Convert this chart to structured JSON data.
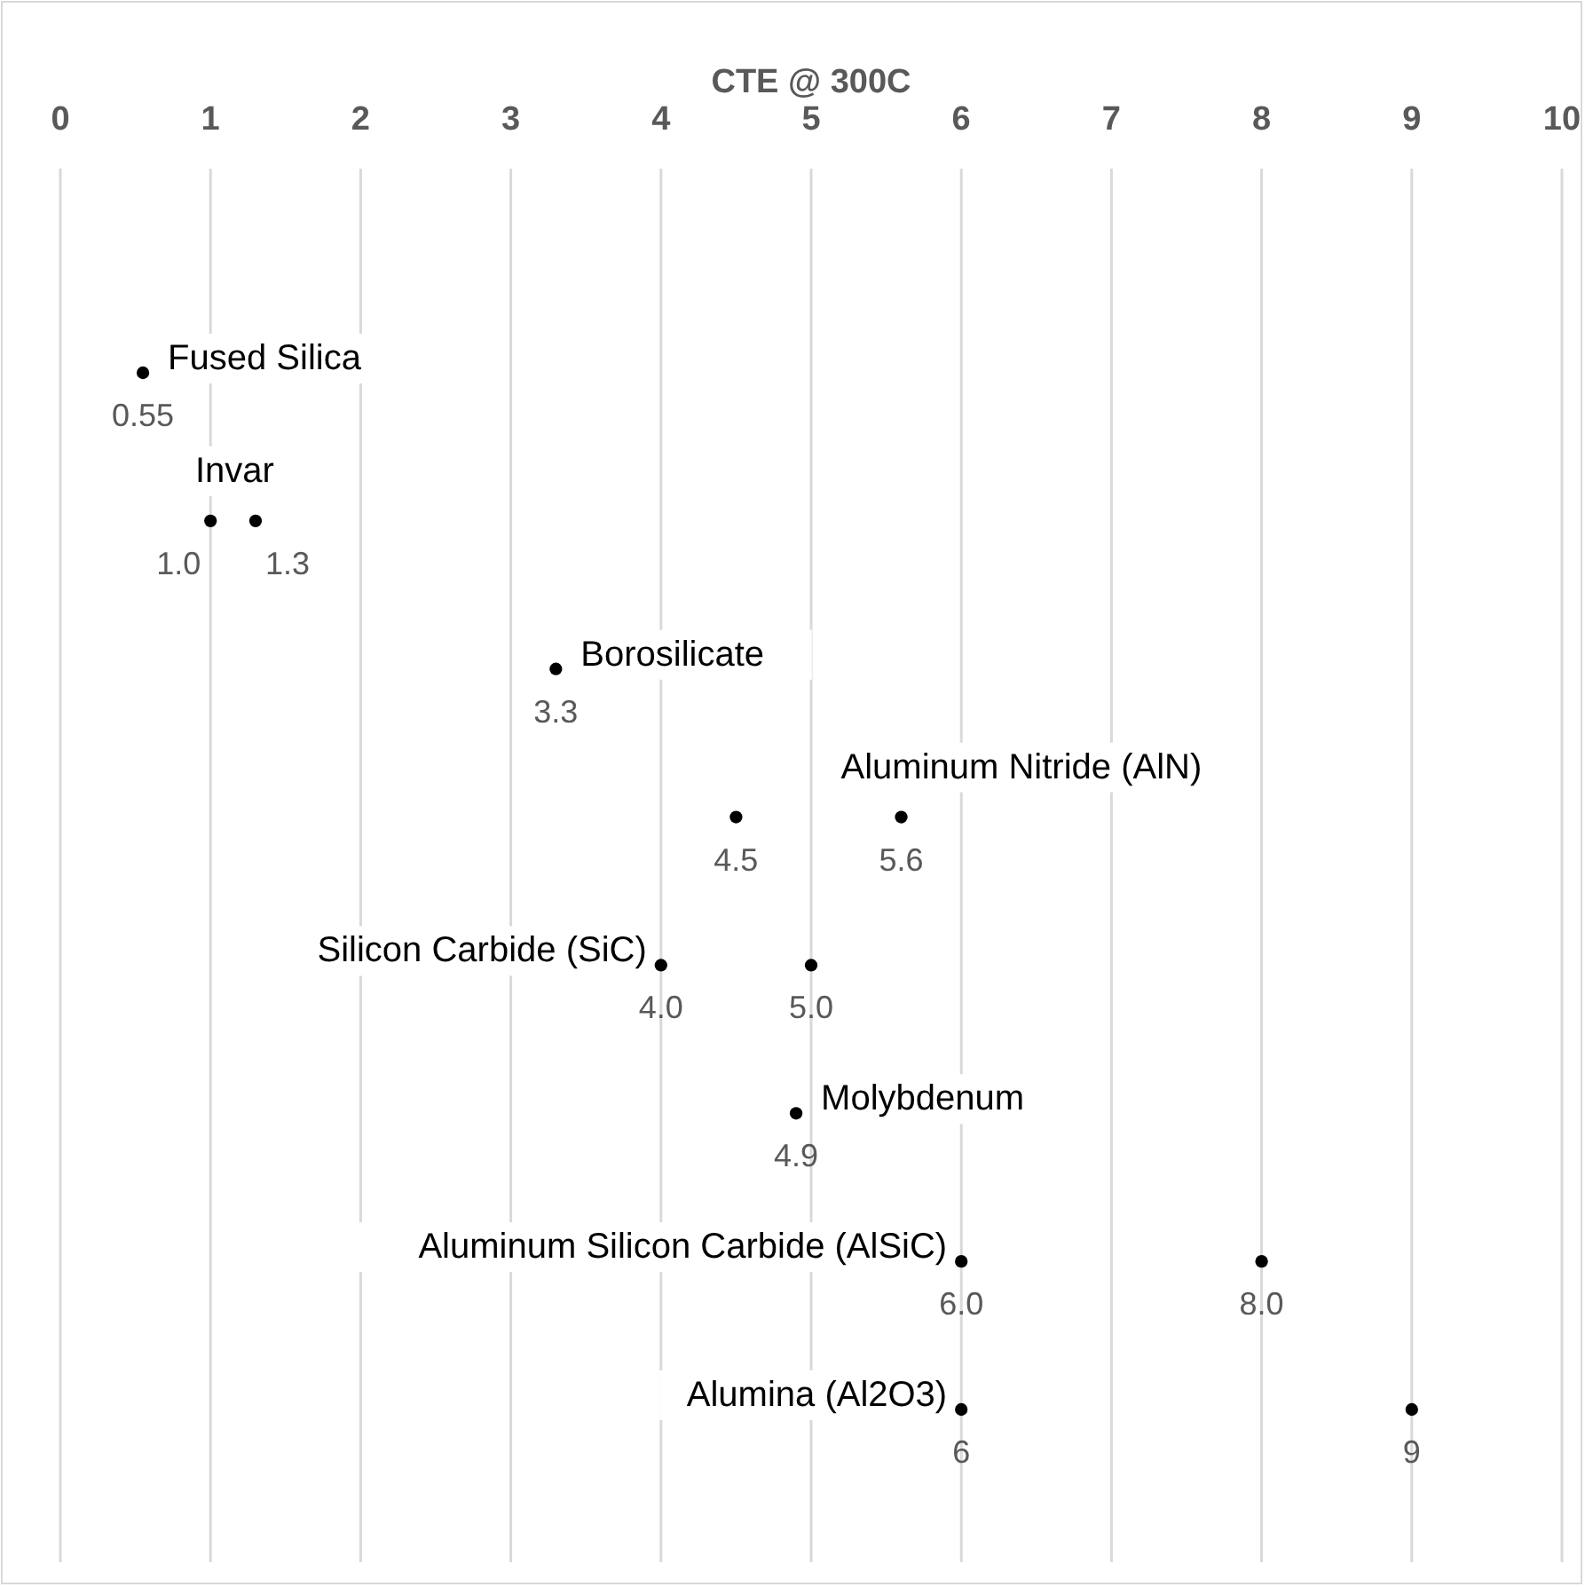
{
  "chart_data": {
    "type": "scatter",
    "orientation": "horizontal",
    "title": "CTE @ 300C",
    "categories": [
      "Fused Silica",
      "Invar",
      "Borosilicate",
      "Aluminum Nitride (AlN)",
      "Silicon Carbide (SiC)",
      "Molybdenum",
      "Aluminum Silicon Carbide (AlSiC)",
      "Alumina (Al2O3)"
    ],
    "series": [
      {
        "color": "#000000",
        "values": [
          0.55,
          1.0,
          3.3,
          4.5,
          4.0,
          4.9,
          6.0,
          6
        ],
        "value_labels": [
          "0.55",
          "1.0",
          "3.3",
          "4.5",
          "4.0",
          "4.9",
          "6.0",
          "6"
        ]
      },
      {
        "color": "#000000",
        "values": [
          null,
          1.3,
          null,
          5.6,
          5.0,
          null,
          8.0,
          9
        ],
        "value_labels": [
          null,
          "1.3",
          null,
          "5.6",
          "5.0",
          null,
          "8.0",
          "9"
        ]
      }
    ],
    "xlim": [
      0,
      10
    ],
    "xticks": [
      0,
      1,
      2,
      3,
      4,
      5,
      6,
      7,
      8,
      9,
      10
    ],
    "grid": "x",
    "marker": "circle"
  }
}
